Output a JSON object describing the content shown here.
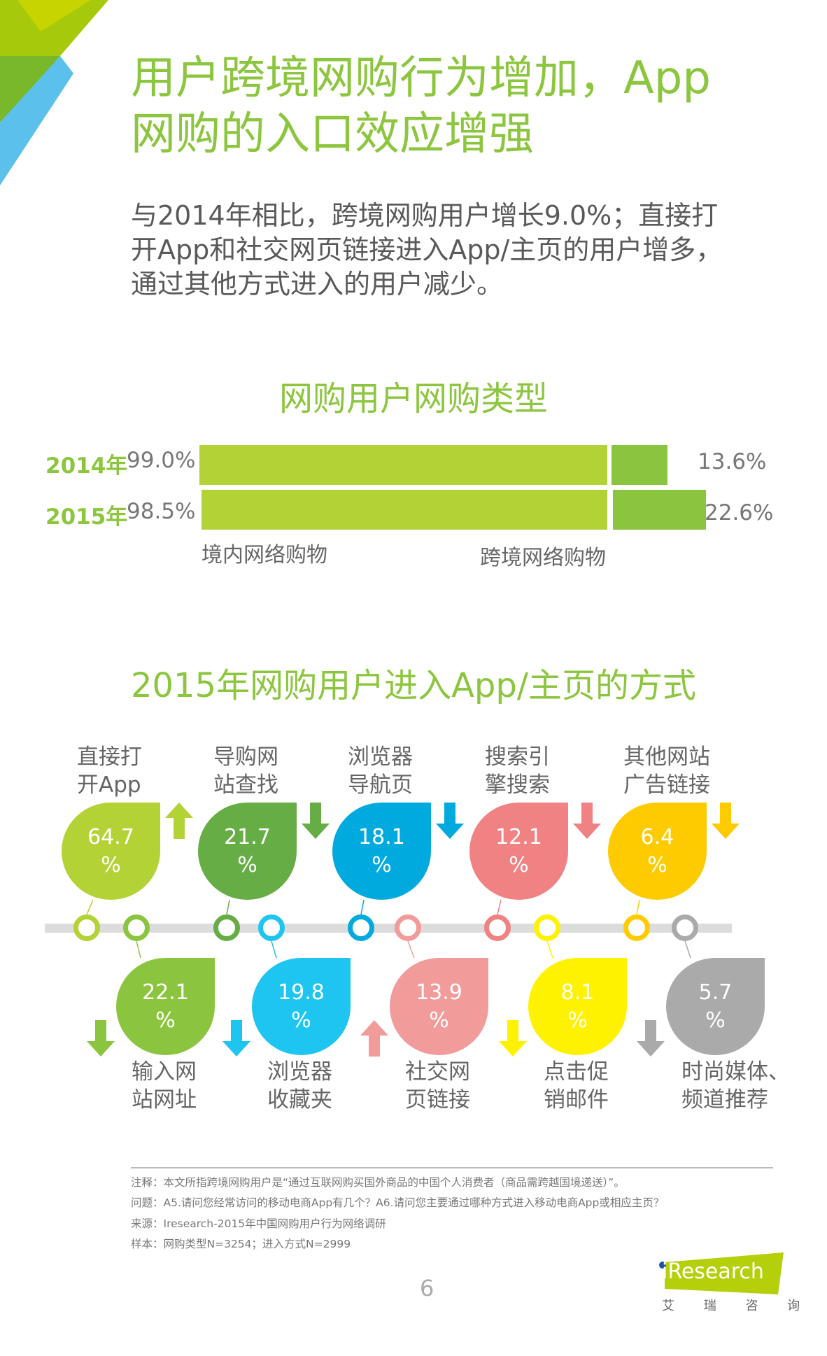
{
  "header": {
    "title_lines": [
      "用户跨境网购行为增加，App",
      "网购的入口效应增强"
    ],
    "subtitle_lines": [
      "与2014年相比，跨境网购用户增长9.0%；直接打",
      "开App和社交网页链接进入App/主页的用户增多，",
      "通过其他方式进入的用户减少。"
    ]
  },
  "colors": {
    "title_green": "#8cc63e",
    "bar_domestic": "#b2d235",
    "bar_cross": "#8bc53f"
  },
  "chart_data": [
    {
      "type": "bar",
      "title": "网购用户网购类型",
      "categories": [
        "2014年",
        "2015年"
      ],
      "series": [
        {
          "name": "境内网络购物",
          "values": [
            99.0,
            98.5
          ],
          "labels": [
            "99.0%",
            "98.5%"
          ]
        },
        {
          "name": "跨境网络购物",
          "values": [
            13.6,
            22.6
          ],
          "labels": [
            "13.6%",
            "22.6%"
          ]
        }
      ],
      "unit": "%"
    },
    {
      "type": "table",
      "title": "2015年网购用户进入App/主页的方式",
      "unit": "%",
      "top": [
        {
          "label1": "直接打",
          "label2": "开App",
          "value": "64.7",
          "trend": "up",
          "color": "#b2d235"
        },
        {
          "label1": "导购网",
          "label2": "站查找",
          "value": "21.7",
          "trend": "down",
          "color": "#66ad45"
        },
        {
          "label1": "浏览器",
          "label2": "导航页",
          "value": "18.1",
          "trend": "down",
          "color": "#00aade"
        },
        {
          "label1": "搜索引",
          "label2": "擎搜索",
          "value": "12.1",
          "trend": "down",
          "color": "#f08283"
        },
        {
          "label1": "其他网站",
          "label2": "广告链接",
          "value": "6.4",
          "trend": "down",
          "color": "#fdcb00"
        }
      ],
      "bottom": [
        {
          "label1": "输入网",
          "label2": "站网址",
          "value": "22.1",
          "trend": "down",
          "color": "#8bc53f"
        },
        {
          "label1": "浏览器",
          "label2": "收藏夹",
          "value": "19.8",
          "trend": "down",
          "color": "#1ec5f0"
        },
        {
          "label1": "社交网",
          "label2": "页链接",
          "value": "13.9",
          "trend": "up",
          "color": "#f29b9b"
        },
        {
          "label1": "点击促",
          "label2": "销邮件",
          "value": "8.1",
          "trend": "down",
          "color": "#fff200"
        },
        {
          "label1": "时尚媒体、",
          "label2": "频道推荐",
          "value": "5.7",
          "trend": "down",
          "color": "#aaaaaa"
        }
      ]
    }
  ],
  "footer": {
    "notes": [
      "注释：本文所指跨境网购用户是“通过互联网购买国外商品的中国个人消费者（商品需跨越国境递送）”。",
      "问题：A5.请问您经常访问的移动电商App有几个？A6.请问您主要通过哪种方式进入移动电商App或相应主页？",
      "来源：Iresearch-2015年中国网购用户行为网络调研",
      "样本：网购类型N=3254；进入方式N=2999"
    ],
    "page_number": "6",
    "logo_text": "iResearch",
    "logo_cn": "艾 瑞 咨 询"
  }
}
